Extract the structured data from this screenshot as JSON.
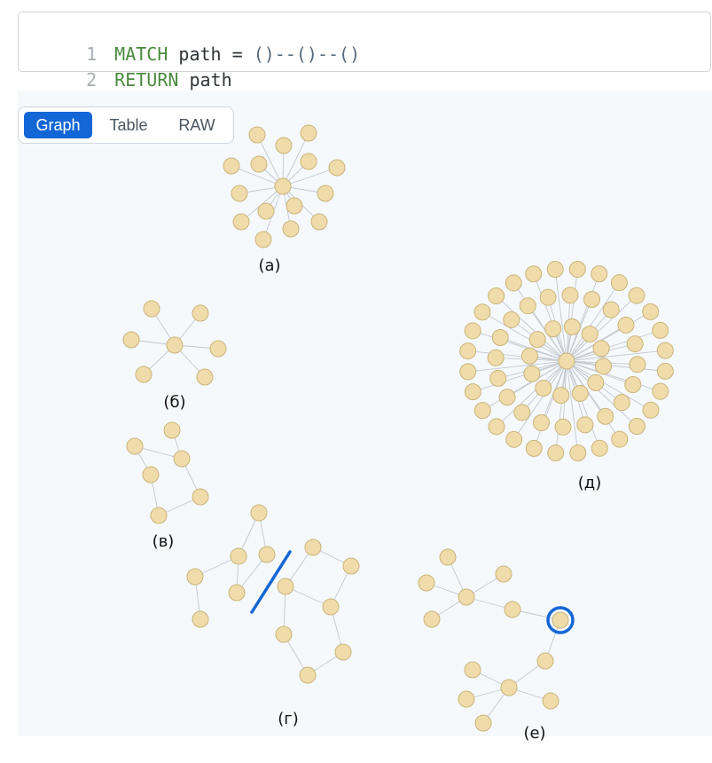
{
  "editor": {
    "lines": [
      {
        "num": "1",
        "keyword": "MATCH",
        "text": " path = ",
        "pattern": "()--()--()"
      },
      {
        "num": "2",
        "keyword": "RETURN",
        "text": " path",
        "pattern": ""
      }
    ]
  },
  "view_tabs": [
    {
      "label": "Graph",
      "active": true
    },
    {
      "label": "Table",
      "active": false
    },
    {
      "label": "RAW",
      "active": false
    }
  ],
  "graph": {
    "node_color": "#f0dcaa",
    "node_border": "#c9b37a",
    "edge_color": "#c2c8cf",
    "highlight_color": "#1366d6",
    "captions": [
      "(а)",
      "(б)",
      "(в)",
      "(г)",
      "(д)",
      "(е)"
    ]
  }
}
